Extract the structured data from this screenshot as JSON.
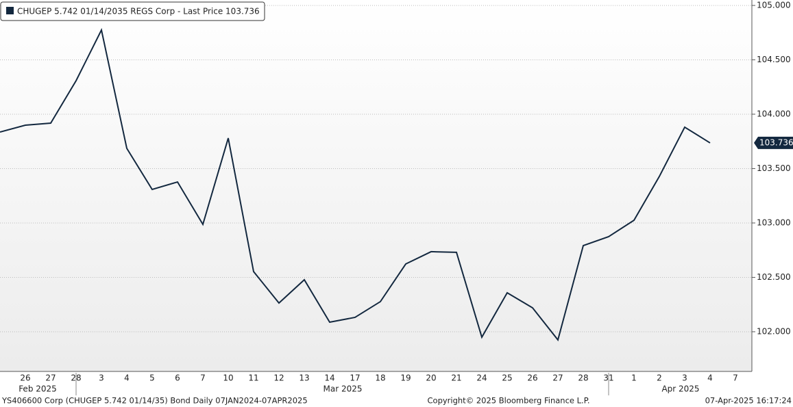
{
  "chart_data": {
    "type": "line",
    "legend": "CHUGEP 5.742 01/14/2035 REGS Corp - Last Price 103.736",
    "categories": [
      null,
      "26",
      "27",
      "28",
      "3",
      "4",
      "5",
      "6",
      "7",
      "10",
      "11",
      "12",
      "13",
      "14",
      "17",
      "18",
      "19",
      "20",
      "21",
      "24",
      "25",
      "26",
      "27",
      "28",
      "31",
      "1",
      "2",
      "3",
      "4",
      "7"
    ],
    "months": [
      "Feb 2025",
      "Mar 2025",
      "Apr 2025"
    ],
    "series": [
      {
        "name": "CHUGEP 5.742 01/14/2035 REGS Corp",
        "color": "#13283f",
        "values": [
          103.836,
          103.899,
          103.918,
          104.308,
          104.774,
          103.686,
          103.308,
          103.377,
          102.987,
          103.78,
          102.553,
          102.264,
          102.478,
          102.088,
          102.132,
          102.277,
          102.623,
          102.736,
          102.73,
          101.95,
          102.358,
          102.22,
          101.925,
          102.792,
          102.874,
          103.025,
          103.428,
          103.881,
          103.736,
          null
        ]
      }
    ],
    "last_value": 103.736,
    "ylim": [
      101.635,
      105.05
    ],
    "yticks": [
      {
        "value": 102,
        "label": "102.000"
      },
      {
        "value": 102.5,
        "label": "102.500"
      },
      {
        "value": 103,
        "label": "103.000"
      },
      {
        "value": 103.5,
        "label": "103.500"
      },
      {
        "value": 104,
        "label": "104.000"
      },
      {
        "value": 104.5,
        "label": "104.500"
      },
      {
        "value": 105,
        "label": "105.000"
      }
    ],
    "grid": true,
    "footer_left": "YS406600 Corp (CHUGEP 5.742 01/14/35) Bond  Daily 07JAN2024-07APR2025",
    "footer_center": "Copyright© 2025 Bloomberg Finance L.P.",
    "footer_right": "07-Apr-2025 16:17:24"
  }
}
